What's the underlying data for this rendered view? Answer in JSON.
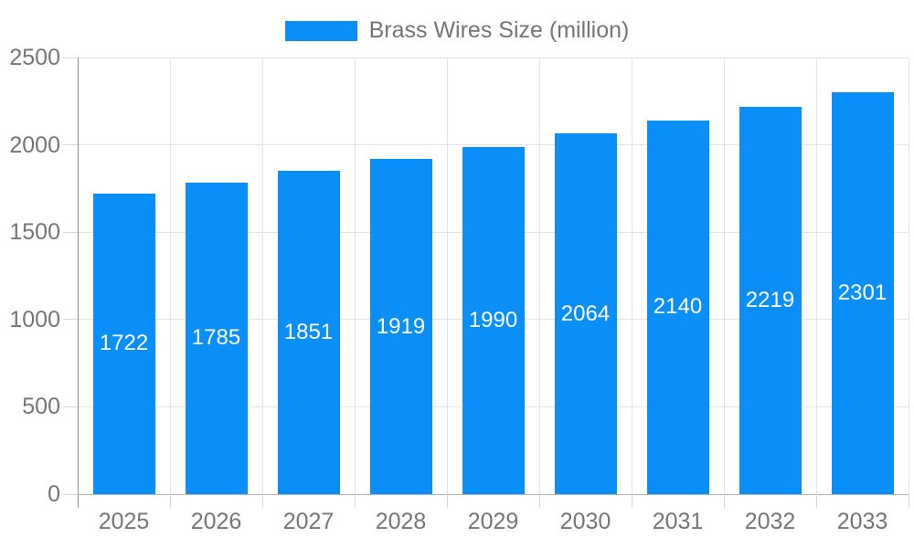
{
  "legend": {
    "label": "Brass Wires Size (million)"
  },
  "chart_data": {
    "type": "bar",
    "categories": [
      "2025",
      "2026",
      "2027",
      "2028",
      "2029",
      "2030",
      "2031",
      "2032",
      "2033"
    ],
    "values": [
      1722,
      1785,
      1851,
      1919,
      1990,
      2064,
      2140,
      2219,
      2301
    ],
    "series_name": "Brass Wires Size (million)",
    "legend": [
      "Brass Wires Size (million)"
    ],
    "legend_position": "top-center",
    "xlabel": "",
    "ylabel": "",
    "ylim": [
      0,
      2500
    ],
    "yticks": [
      0,
      500,
      1000,
      1500,
      2000,
      2500
    ],
    "grid": true,
    "value_labels": "inside-middle",
    "style": {
      "bar_color": "#0a8ff8",
      "value_label_color": "#ffffff",
      "axis_text_color": "#757575",
      "grid_color": "#e3e3e3",
      "baseline_color": "#b3b3b3",
      "axis_line_color": "#8f8f8f",
      "tick_color": "#d6d6d6",
      "background_color": "#ffffff"
    }
  }
}
